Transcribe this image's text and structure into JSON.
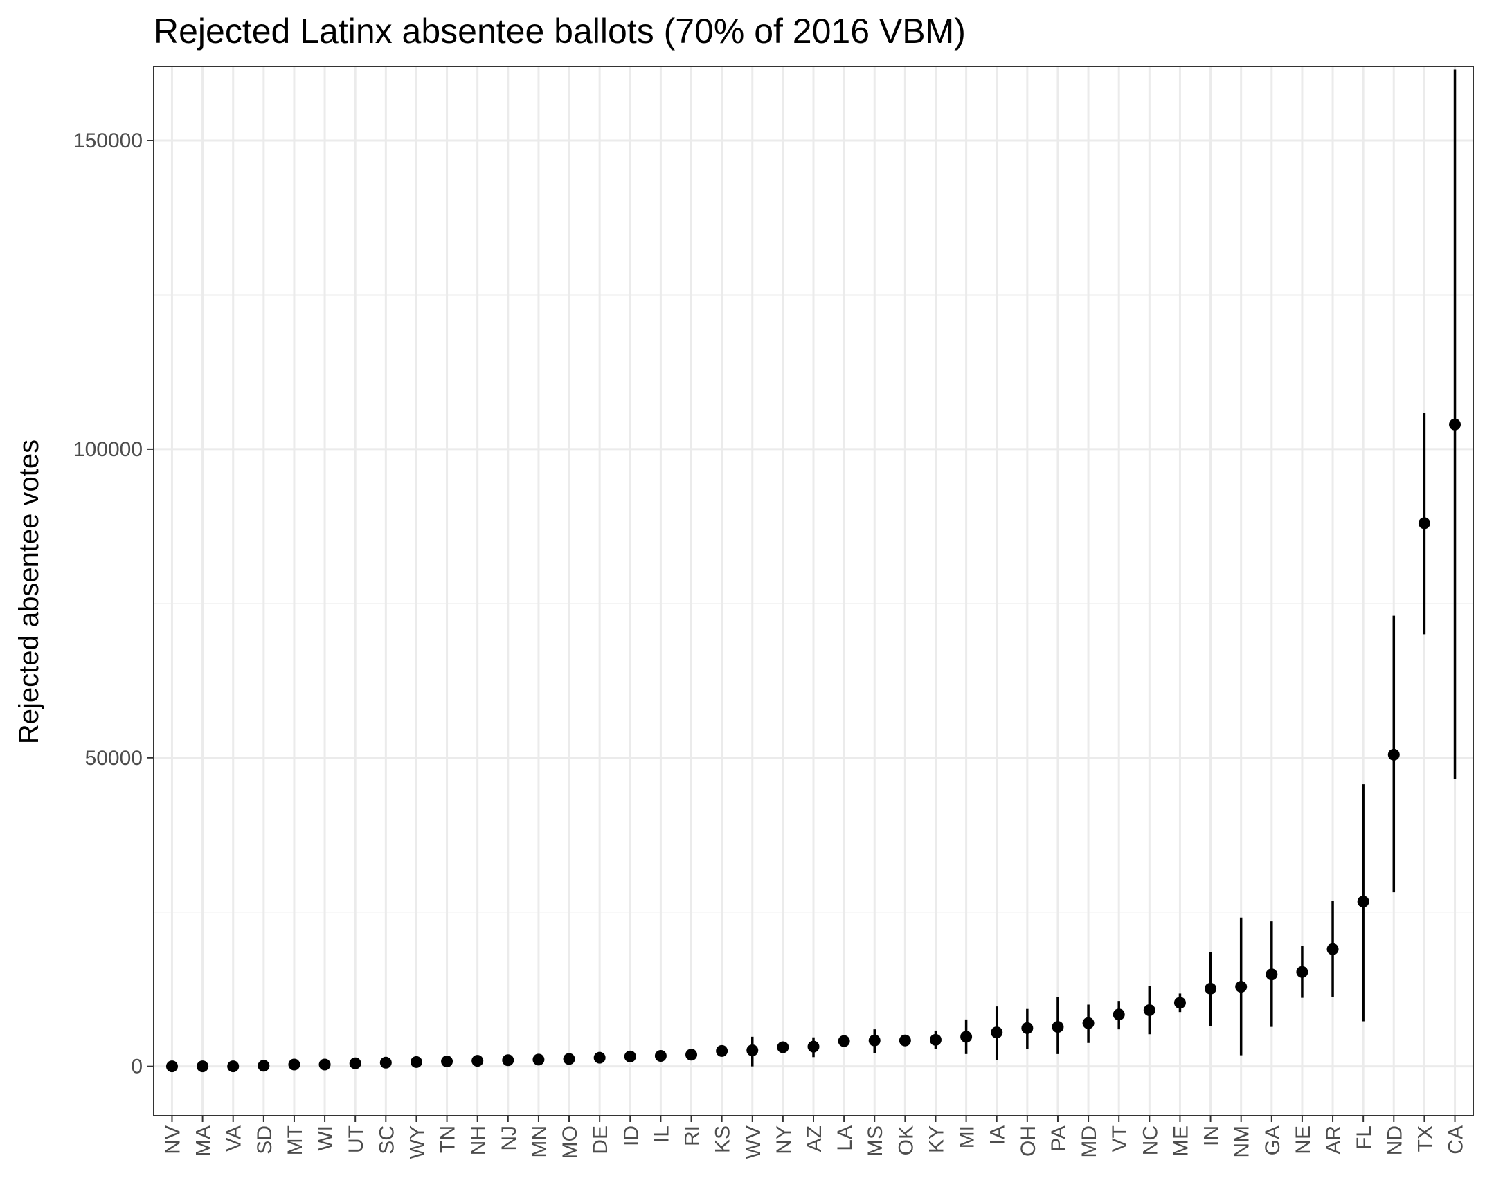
{
  "chart_data": {
    "type": "scatter",
    "title": "Rejected Latinx absentee ballots (70% of 2016 VBM)",
    "xlabel": "",
    "ylabel": "Rejected absentee votes",
    "ylim": [
      -8000,
      162000
    ],
    "yticks": [
      0,
      50000,
      100000,
      150000
    ],
    "ytick_labels": [
      "0",
      "50000",
      "100000",
      "150000"
    ],
    "grid": true,
    "colors": {
      "points": "#000000",
      "grid": "#ebebeb",
      "panel_border": "#333333",
      "background": "#ffffff"
    },
    "categories": [
      "NV",
      "MA",
      "VA",
      "SD",
      "MT",
      "WI",
      "UT",
      "SC",
      "WY",
      "TN",
      "NH",
      "NJ",
      "MN",
      "MO",
      "DE",
      "ID",
      "IL",
      "RI",
      "KS",
      "WV",
      "NY",
      "AZ",
      "LA",
      "MS",
      "OK",
      "KY",
      "MI",
      "IA",
      "OH",
      "PA",
      "MD",
      "VT",
      "NC",
      "ME",
      "IN",
      "NM",
      "GA",
      "NE",
      "AR",
      "FL",
      "ND",
      "TX",
      "CA"
    ],
    "series": [
      {
        "values": [
          0,
          0,
          0,
          100,
          300,
          300,
          500,
          600,
          700,
          800,
          900,
          1000,
          1100,
          1200,
          1400,
          1600,
          1700,
          1900,
          2500,
          2600,
          3100,
          3200,
          4100,
          4200,
          4200,
          4300,
          4800,
          5500,
          6200,
          6400,
          7000,
          8400,
          9100,
          10300,
          12600,
          12900,
          14900,
          15300,
          19000,
          26700,
          50500,
          88000,
          104000
        ],
        "lower": [
          0,
          0,
          0,
          100,
          300,
          300,
          500,
          600,
          700,
          800,
          900,
          1000,
          1100,
          1200,
          1400,
          1600,
          1700,
          1900,
          2500,
          0,
          3100,
          1500,
          4100,
          2200,
          4200,
          2800,
          2000,
          1000,
          2800,
          2000,
          3800,
          6000,
          5200,
          8800,
          6500,
          1800,
          6400,
          11100,
          11200,
          7300,
          28200,
          70000,
          46500
        ],
        "upper": [
          0,
          0,
          0,
          100,
          300,
          300,
          500,
          600,
          700,
          800,
          900,
          1000,
          1100,
          1200,
          1400,
          1600,
          1700,
          1900,
          2500,
          4800,
          3100,
          4700,
          4100,
          6000,
          4200,
          5800,
          7600,
          9700,
          9300,
          11200,
          10000,
          10600,
          13000,
          11800,
          18500,
          24100,
          23500,
          19500,
          26800,
          45700,
          73000,
          105900,
          161500
        ]
      }
    ]
  }
}
